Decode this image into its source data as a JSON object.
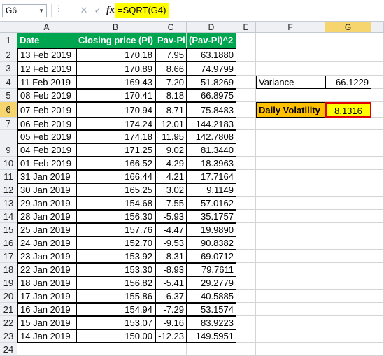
{
  "formula_bar": {
    "name_box": "G6",
    "formula": "=SQRT(G4)",
    "fx_label": "fx"
  },
  "columns": [
    "A",
    "B",
    "C",
    "D",
    "E",
    "F",
    "G"
  ],
  "headers": [
    "Date",
    "Closing price (Pi)",
    "Pav-Pi",
    "(Pav-Pi)^2"
  ],
  "rows": [
    {
      "r": "2",
      "date": "13 Feb 2019",
      "price": "170.18",
      "dev": "7.95",
      "sq": "63.1880"
    },
    {
      "r": "3",
      "date": "12 Feb 2019",
      "price": "170.89",
      "dev": "8.66",
      "sq": "74.9799"
    },
    {
      "r": "4",
      "date": "11 Feb 2019",
      "price": "169.43",
      "dev": "7.20",
      "sq": "51.8269"
    },
    {
      "r": "5",
      "date": "08 Feb 2019",
      "price": "170.41",
      "dev": "8.18",
      "sq": "66.8975"
    },
    {
      "r": "6",
      "date": "07 Feb 2019",
      "price": "170.94",
      "dev": "8.71",
      "sq": "75.8483"
    },
    {
      "r": "7",
      "date": "06 Feb 2019",
      "price": "174.24",
      "dev": "12.01",
      "sq": "144.2183"
    },
    {
      "r": "",
      "date": "05 Feb 2019",
      "price": "174.18",
      "dev": "11.95",
      "sq": "142.7808"
    },
    {
      "r": "9",
      "date": "04 Feb 2019",
      "price": "171.25",
      "dev": "9.02",
      "sq": "81.3440"
    },
    {
      "r": "10",
      "date": "01 Feb 2019",
      "price": "166.52",
      "dev": "4.29",
      "sq": "18.3963"
    },
    {
      "r": "11",
      "date": "31 Jan 2019",
      "price": "166.44",
      "dev": "4.21",
      "sq": "17.7164"
    },
    {
      "r": "12",
      "date": "30 Jan 2019",
      "price": "165.25",
      "dev": "3.02",
      "sq": "9.1149"
    },
    {
      "r": "13",
      "date": "29 Jan 2019",
      "price": "154.68",
      "dev": "-7.55",
      "sq": "57.0162"
    },
    {
      "r": "14",
      "date": "28 Jan 2019",
      "price": "156.30",
      "dev": "-5.93",
      "sq": "35.1757"
    },
    {
      "r": "15",
      "date": "25 Jan 2019",
      "price": "157.76",
      "dev": "-4.47",
      "sq": "19.9890"
    },
    {
      "r": "16",
      "date": "24 Jan 2019",
      "price": "152.70",
      "dev": "-9.53",
      "sq": "90.8382"
    },
    {
      "r": "17",
      "date": "23 Jan 2019",
      "price": "153.92",
      "dev": "-8.31",
      "sq": "69.0712"
    },
    {
      "r": "18",
      "date": "22 Jan 2019",
      "price": "153.30",
      "dev": "-8.93",
      "sq": "79.7611"
    },
    {
      "r": "19",
      "date": "18 Jan 2019",
      "price": "156.82",
      "dev": "-5.41",
      "sq": "29.2779"
    },
    {
      "r": "20",
      "date": "17 Jan 2019",
      "price": "155.86",
      "dev": "-6.37",
      "sq": "40.5885"
    },
    {
      "r": "21",
      "date": "16 Jan 2019",
      "price": "154.94",
      "dev": "-7.29",
      "sq": "53.1574"
    },
    {
      "r": "22",
      "date": "15 Jan 2019",
      "price": "153.07",
      "dev": "-9.16",
      "sq": "83.9223"
    },
    {
      "r": "23",
      "date": "14 Jan 2019",
      "price": "150.00",
      "dev": "-12.23",
      "sq": "149.5951"
    },
    {
      "r": "24",
      "date": "",
      "price": "",
      "dev": "",
      "sq": ""
    }
  ],
  "variance": {
    "label": "Variance",
    "value": "66.1229"
  },
  "volatility": {
    "label": "Daily Volatility",
    "value": "8.1316"
  },
  "colors": {
    "header_fill": "#00a550",
    "formula_highlight": "#ffff00",
    "volatility_fill": "#ffc000",
    "result_fill": "#ffff00",
    "selection_border": "#e00000"
  }
}
